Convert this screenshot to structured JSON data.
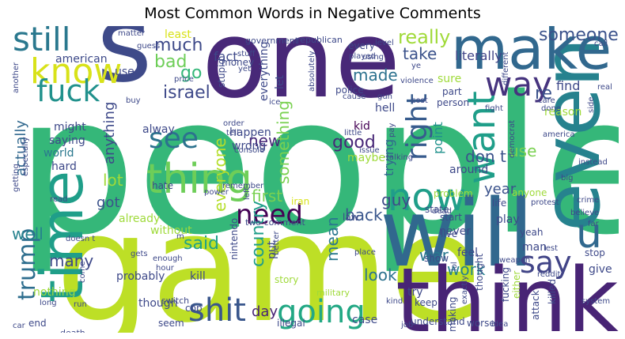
{
  "title": "Most Common Words in Negative Comments",
  "words": [
    {
      "text": "people",
      "c": "#35b779"
    },
    {
      "text": "game",
      "c": "#bddf26"
    },
    {
      "text": "one",
      "c": "#482878"
    },
    {
      "text": "will",
      "c": "#31688e"
    },
    {
      "text": "think",
      "c": "#482475"
    },
    {
      "text": "s",
      "c": "#3e4a89"
    },
    {
      "text": "even",
      "c": "#26828e"
    },
    {
      "text": "make",
      "c": "#31688e"
    },
    {
      "text": "time",
      "c": "#1f9e89"
    },
    {
      "text": "thing",
      "c": "#6ece58"
    },
    {
      "text": "know",
      "c": "#d8e219"
    },
    {
      "text": "still",
      "c": "#2a788e"
    },
    {
      "text": "fuck",
      "c": "#21918c"
    },
    {
      "text": "want",
      "c": "#1f9e89"
    },
    {
      "text": "way",
      "c": "#46337e"
    },
    {
      "text": "now",
      "c": "#1f9e89"
    },
    {
      "text": "say",
      "c": "#414487"
    },
    {
      "text": "need",
      "c": "#440154"
    },
    {
      "text": "shit",
      "c": "#39568c"
    },
    {
      "text": "going",
      "c": "#22a884"
    },
    {
      "text": "see",
      "c": "#2c728e"
    },
    {
      "text": "u",
      "c": "#31688e"
    },
    {
      "text": "trump",
      "c": "#2e6e8e"
    },
    {
      "text": "right",
      "c": "#375b8d"
    },
    {
      "text": "really",
      "c": "#a0da39"
    },
    {
      "text": "someone",
      "c": "#3b528b"
    },
    {
      "text": "much",
      "c": "#3e4a89"
    },
    {
      "text": "israel",
      "c": "#3e4989"
    },
    {
      "text": "bad",
      "c": "#6ece58"
    },
    {
      "text": "go",
      "c": "#35b779"
    },
    {
      "text": "good",
      "c": "#482878"
    },
    {
      "text": "made",
      "c": "#2c728e"
    },
    {
      "text": "take",
      "c": "#3b528b"
    },
    {
      "text": "use",
      "c": "#7ad151"
    },
    {
      "text": "lot",
      "c": "#a0da39"
    },
    {
      "text": "got",
      "c": "#3b528b"
    },
    {
      "text": "new",
      "c": "#482878"
    },
    {
      "text": "first",
      "c": "#7ad151"
    },
    {
      "text": "guy",
      "c": "#3e4a89"
    },
    {
      "text": "back",
      "c": "#39568c"
    },
    {
      "text": "said",
      "c": "#1fa187"
    },
    {
      "text": "well",
      "c": "#26828e"
    },
    {
      "text": "many",
      "c": "#3e4989"
    },
    {
      "text": "look",
      "c": "#2c728e"
    },
    {
      "text": "work",
      "c": "#26828e"
    },
    {
      "text": "day",
      "c": "#482475"
    },
    {
      "text": "war",
      "c": "#2a788e"
    },
    {
      "text": "year",
      "c": "#3b528b"
    },
    {
      "text": "country",
      "c": "#1f9e89"
    },
    {
      "text": "mean",
      "c": "#2a788e"
    },
    {
      "text": "everyone",
      "c": "#b5de2b"
    },
    {
      "text": "anything",
      "c": "#3e4989"
    },
    {
      "text": "actually",
      "c": "#31688e"
    },
    {
      "text": "something",
      "c": "#7ad151"
    },
    {
      "text": "trying",
      "c": "#31688e"
    },
    {
      "text": "point",
      "c": "#21918c"
    },
    {
      "text": "don t",
      "c": "#3b528b"
    },
    {
      "text": "re",
      "c": "#3b528b"
    },
    {
      "text": "literally",
      "c": "#414487"
    },
    {
      "text": "fact",
      "c": "#3e4989"
    },
    {
      "text": "least",
      "c": "#d8e219"
    },
    {
      "text": "american",
      "c": "#3e4a89"
    },
    {
      "text": "used",
      "c": "#3e4989"
    },
    {
      "text": "might",
      "c": "#3e4989"
    },
    {
      "text": "saying",
      "c": "#3e4989"
    },
    {
      "text": "world",
      "c": "#2a788e"
    },
    {
      "text": "hard",
      "c": "#3e4989"
    },
    {
      "text": "alway",
      "c": "#3e4989"
    },
    {
      "text": "happen",
      "c": "#3e4989"
    },
    {
      "text": "wrong",
      "c": "#3e4989"
    },
    {
      "text": "hate",
      "c": "#3e4989"
    },
    {
      "text": "already",
      "c": "#9fda3a"
    },
    {
      "text": "without",
      "c": "#9fda3a"
    },
    {
      "text": "probably",
      "c": "#3e4989"
    },
    {
      "text": "kill",
      "c": "#3e4989"
    },
    {
      "text": "nothing",
      "c": "#9fda3a"
    },
    {
      "text": "though",
      "c": "#3e4989"
    },
    {
      "text": "end",
      "c": "#3e4989"
    },
    {
      "text": "seem",
      "c": "#3e4989"
    },
    {
      "text": "cop",
      "c": "#3e4989"
    },
    {
      "text": "put",
      "c": "#3e4989"
    },
    {
      "text": "nintendo",
      "c": "#3e4989"
    },
    {
      "text": "let",
      "c": "#3e4989"
    },
    {
      "text": "everything",
      "c": "#3e4989"
    },
    {
      "text": "money",
      "c": "#3e4989"
    },
    {
      "text": "stupid",
      "c": "#3e4989"
    },
    {
      "text": "hell",
      "c": "#3e4989"
    },
    {
      "text": "kid",
      "c": "#440154"
    },
    {
      "text": "maybe",
      "c": "#9fda3a"
    },
    {
      "text": "sure",
      "c": "#9fda3a"
    },
    {
      "text": "part",
      "c": "#3e4989"
    },
    {
      "text": "person",
      "c": "#3e4989"
    },
    {
      "text": "find",
      "c": "#3e4989"
    },
    {
      "text": "reason",
      "c": "#9fda3a"
    },
    {
      "text": "around",
      "c": "#3e4989"
    },
    {
      "text": "anyone",
      "c": "#9fda3a"
    },
    {
      "text": "life",
      "c": "#3e4989"
    },
    {
      "text": "problem",
      "c": "#9fda3a"
    },
    {
      "text": "play",
      "c": "#3e4989"
    },
    {
      "text": "start",
      "c": "#3e4989"
    },
    {
      "text": "never",
      "c": "#3e4989"
    },
    {
      "text": "live",
      "c": "#3e4989"
    },
    {
      "text": "yeah",
      "c": "#3e4989"
    },
    {
      "text": "man",
      "c": "#3e4989"
    },
    {
      "text": "feel",
      "c": "#3e4989"
    },
    {
      "text": "show",
      "c": "#3e4989"
    },
    {
      "text": "give",
      "c": "#3e4989"
    },
    {
      "text": "stop",
      "c": "#3e4989"
    },
    {
      "text": "killed",
      "c": "#3e4989"
    },
    {
      "text": "attack",
      "c": "#3e4989"
    },
    {
      "text": "making",
      "c": "#3e4989"
    },
    {
      "text": "keep",
      "c": "#3e4989"
    },
    {
      "text": "try",
      "c": "#3e4989"
    },
    {
      "text": "case",
      "c": "#3e4989"
    },
    {
      "text": "thought",
      "c": "#3e4989"
    },
    {
      "text": "fucking",
      "c": "#3e4989"
    },
    {
      "text": "either",
      "c": "#9fda3a"
    },
    {
      "text": "state",
      "c": "#3e4989"
    },
    {
      "text": "law",
      "c": "#3e4989"
    },
    {
      "text": "police",
      "c": "#3e4989"
    },
    {
      "text": "made",
      "c": "#3e4989"
    },
    {
      "text": "illegal",
      "c": "#3e4989"
    },
    {
      "text": "military",
      "c": "#9fda3a"
    },
    {
      "text": "story",
      "c": "#9fda3a"
    },
    {
      "text": "worse",
      "c": "#3e4989"
    },
    {
      "text": "understand",
      "c": "#3e4989"
    },
    {
      "text": "death",
      "c": "#3e4989"
    },
    {
      "text": "switch",
      "c": "#3e4989"
    },
    {
      "text": "two comment",
      "c": "#3e4989"
    },
    {
      "text": "iran",
      "c": "#d8e219"
    },
    {
      "text": "government",
      "c": "#3e4989"
    },
    {
      "text": "republican",
      "c": "#3e4989"
    },
    {
      "text": "matter",
      "c": "#3e4989"
    },
    {
      "text": "guess",
      "c": "#3e4989"
    },
    {
      "text": "stuff",
      "c": "#3e4989"
    },
    {
      "text": "yet",
      "c": "#3e4989"
    },
    {
      "text": "price",
      "c": "#3e4989"
    },
    {
      "text": "another",
      "c": "#3e4989"
    },
    {
      "text": "buy",
      "c": "#3e4989"
    },
    {
      "text": "played",
      "c": "#3e4989"
    },
    {
      "text": "every",
      "c": "#3e4989"
    },
    {
      "text": "level",
      "c": "#3e4989"
    },
    {
      "text": "using",
      "c": "#3e4989"
    },
    {
      "text": "ye",
      "c": "#3e4989"
    },
    {
      "text": "violence",
      "c": "#3e4989"
    },
    {
      "text": "gun",
      "c": "#3e4989"
    },
    {
      "text": "cause",
      "c": "#3e4989"
    },
    {
      "text": "cost",
      "c": "#3e4989"
    },
    {
      "text": "fight",
      "c": "#3e4989"
    },
    {
      "text": "care",
      "c": "#3e4989"
    },
    {
      "text": "done",
      "c": "#3e4989"
    },
    {
      "text": "lol",
      "c": "#3e4989"
    },
    {
      "text": "big",
      "c": "#3e4989"
    },
    {
      "text": "crime",
      "c": "#3e4989"
    },
    {
      "text": "believe",
      "c": "#3e4989"
    },
    {
      "text": "system",
      "c": "#3e4989"
    },
    {
      "text": "idea",
      "c": "#3e4989"
    },
    {
      "text": "job",
      "c": "#3e4989"
    },
    {
      "text": "kind",
      "c": "#3e4989"
    },
    {
      "text": "call",
      "c": "#3e4989"
    },
    {
      "text": "real",
      "c": "#3e4989"
    },
    {
      "text": "side",
      "c": "#3e4989"
    },
    {
      "text": "instead",
      "c": "#3e4989"
    },
    {
      "text": "america",
      "c": "#3e4989"
    },
    {
      "text": "different",
      "c": "#3e4989"
    },
    {
      "text": "democrat",
      "c": "#3e4989"
    },
    {
      "text": "protest",
      "c": "#3e4989"
    },
    {
      "text": "far",
      "c": "#3e4989"
    },
    {
      "text": "weapon",
      "c": "#3e4989"
    },
    {
      "text": "reddit",
      "c": "#3e4989"
    },
    {
      "text": "exactly",
      "c": "#3e4989"
    },
    {
      "text": "dead",
      "c": "#3e4989"
    },
    {
      "text": "place",
      "c": "#3e4989"
    },
    {
      "text": "issue",
      "c": "#3e4989"
    },
    {
      "text": "little",
      "c": "#3e4989"
    },
    {
      "text": "pay",
      "c": "#3e4989"
    },
    {
      "text": "talking",
      "c": "#3e4989"
    },
    {
      "text": "order",
      "c": "#3e4989"
    },
    {
      "text": "tell",
      "c": "#3e4989"
    },
    {
      "text": "console",
      "c": "#3e4989"
    },
    {
      "text": "remember",
      "c": "#3e4989"
    },
    {
      "text": "power",
      "c": "#3e4989"
    },
    {
      "text": "ice",
      "c": "#3e4989"
    },
    {
      "text": "absolutely",
      "c": "#3e4989"
    },
    {
      "text": "better",
      "c": "#3e4989"
    },
    {
      "text": "enough",
      "c": "#3e4989"
    },
    {
      "text": "hour",
      "c": "#3e4989"
    },
    {
      "text": "gets",
      "c": "#3e4989"
    },
    {
      "text": "come",
      "c": "#3e4989"
    },
    {
      "text": "doesn t",
      "c": "#3e4989"
    },
    {
      "text": "getting",
      "c": "#3e4989"
    },
    {
      "text": "especially",
      "c": "#3e4989"
    },
    {
      "text": "read",
      "c": "#3e4989"
    },
    {
      "text": "long",
      "c": "#3e4989"
    },
    {
      "text": "run",
      "c": "#3e4989"
    },
    {
      "text": "car",
      "c": "#3e4989"
    },
    {
      "text": "left",
      "c": "#3e4989"
    },
    {
      "text": "m",
      "c": "#3e4989"
    },
    {
      "text": "lest",
      "c": "#3e4989"
    }
  ]
}
